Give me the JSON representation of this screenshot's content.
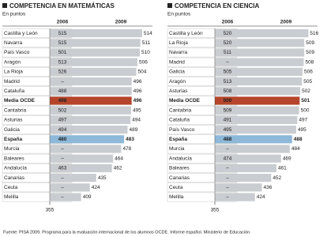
{
  "chart_data": [
    {
      "type": "bar",
      "title": "COMPETENCIA EN MATEMÁTICAS",
      "subtitle": "En puntos",
      "categories": [
        "Castilla y León",
        "Navarra",
        "País Vasco",
        "Aragón",
        "La Rioja",
        "Madrid",
        "Cataluña",
        "Media OCDE",
        "Cantabria",
        "Asturias",
        "Galicia",
        "España",
        "Murcia",
        "Baleares",
        "Andalucía",
        "Canarias",
        "Ceuta",
        "Melilla"
      ],
      "series": [
        {
          "name": "2006",
          "values": [
            515,
            515,
            501,
            513,
            526,
            null,
            488,
            498,
            502,
            497,
            494,
            480,
            null,
            null,
            463,
            null,
            null,
            null
          ],
          "value_labels": [
            "515",
            "515",
            "501",
            "513",
            "526",
            "–",
            "488",
            "498",
            "502",
            "497",
            "494",
            "480",
            "–",
            "–",
            "463",
            "–",
            "–",
            "–"
          ]
        },
        {
          "name": "2009",
          "values": [
            514,
            511,
            510,
            506,
            504,
            496,
            496,
            496,
            495,
            494,
            489,
            483,
            478,
            464,
            462,
            435,
            424,
            409
          ]
        }
      ],
      "bar_colors": [
        "#c9ccd0",
        "#c9ccd0",
        "#c9ccd0",
        "#c9ccd0",
        "#c9ccd0",
        "#c9ccd0",
        "#c9ccd0",
        "#b5452b",
        "#c9ccd0",
        "#c9ccd0",
        "#c9ccd0",
        "#8db8d8",
        "#c9ccd0",
        "#c9ccd0",
        "#c9ccd0",
        "#c9ccd0",
        "#c9ccd0",
        "#c9ccd0"
      ],
      "bold_rows": [
        7,
        11
      ],
      "xlim": [
        355,
        525
      ],
      "xticks": [
        355
      ]
    },
    {
      "type": "bar",
      "title": "COMPETENCIA EN CIENCIA",
      "subtitle": "En puntos",
      "categories": [
        "Castilla y León",
        "La Rioja",
        "Navarra",
        "Madrid",
        "Galicia",
        "Aragón",
        "Asturias",
        "Media OCDE",
        "Cantabria",
        "Cataluña",
        "País Vasco",
        "España",
        "Murcia",
        "Andalucía",
        "Baleares",
        "Canarias",
        "Ceuta",
        "Melilla"
      ],
      "series": [
        {
          "name": "2006",
          "values": [
            520,
            520,
            511,
            null,
            505,
            513,
            508,
            500,
            509,
            491,
            495,
            488,
            null,
            474,
            null,
            null,
            null,
            null
          ],
          "value_labels": [
            "520",
            "520",
            "511",
            "–",
            "505",
            "513",
            "508",
            "500",
            "509",
            "491",
            "495",
            "488",
            "–",
            "474",
            "–",
            "–",
            "–",
            "–"
          ]
        },
        {
          "name": "2009",
          "values": [
            516,
            509,
            509,
            508,
            506,
            505,
            502,
            501,
            500,
            497,
            495,
            488,
            484,
            469,
            461,
            452,
            436,
            424
          ]
        }
      ],
      "bar_colors": [
        "#c9ccd0",
        "#c9ccd0",
        "#c9ccd0",
        "#c9ccd0",
        "#c9ccd0",
        "#c9ccd0",
        "#c9ccd0",
        "#b5452b",
        "#c9ccd0",
        "#c9ccd0",
        "#c9ccd0",
        "#8db8d8",
        "#c9ccd0",
        "#c9ccd0",
        "#c9ccd0",
        "#c9ccd0",
        "#c9ccd0",
        "#c9ccd0"
      ],
      "bold_rows": [
        7,
        11
      ],
      "xlim": [
        355,
        525
      ],
      "xticks": [
        355
      ]
    }
  ],
  "source": "Fuente: PISA 2009. Programa para la evaluación internacional de los alumnos OCDE. Informe español. Ministerio de Educación."
}
